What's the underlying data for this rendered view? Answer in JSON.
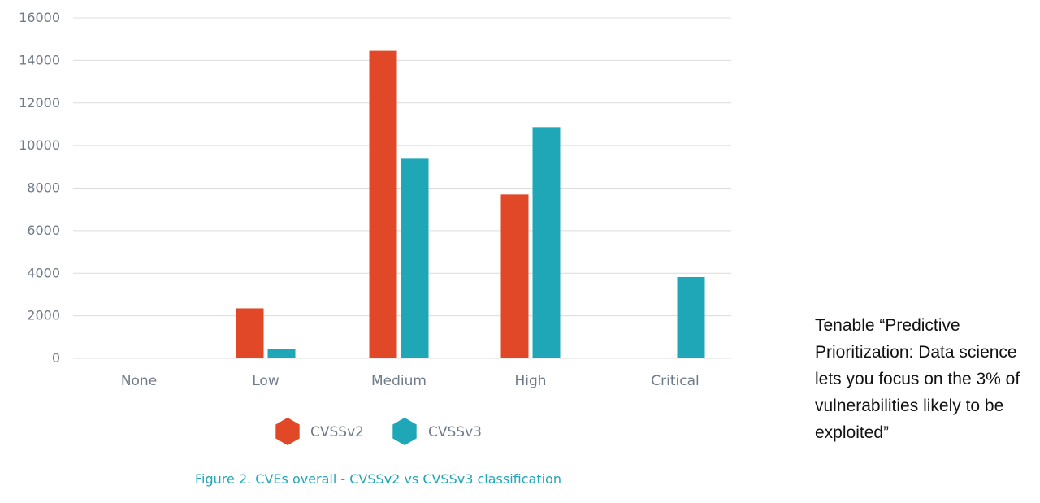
{
  "colors": {
    "cvssv2": "#e04827",
    "cvssv3": "#1fa7b8",
    "grid": "#dcdcdc",
    "axis_text": "#6f7a8a"
  },
  "chart_data": {
    "type": "bar",
    "categories": [
      "None",
      "Low",
      "Medium",
      "High",
      "Critical"
    ],
    "series": [
      {
        "name": "CVSSv2",
        "color": "#e04827",
        "values": [
          0,
          2350,
          14450,
          7700,
          0
        ]
      },
      {
        "name": "CVSSv3",
        "color": "#1fa7b8",
        "values": [
          0,
          420,
          9380,
          10870,
          3820
        ]
      }
    ],
    "yticks": [
      0,
      2000,
      4000,
      6000,
      8000,
      10000,
      12000,
      14000,
      16000
    ],
    "ylim": [
      0,
      16000
    ],
    "grid": true,
    "legend_position": "bottom-center",
    "caption": "Figure 2. CVEs overall - CVSSv2 vs CVSSv3 classification"
  },
  "side_note": "Tenable “Predictive Prioritization: Data science lets you focus on the 3% of vulnerabilities likely to be exploited”"
}
